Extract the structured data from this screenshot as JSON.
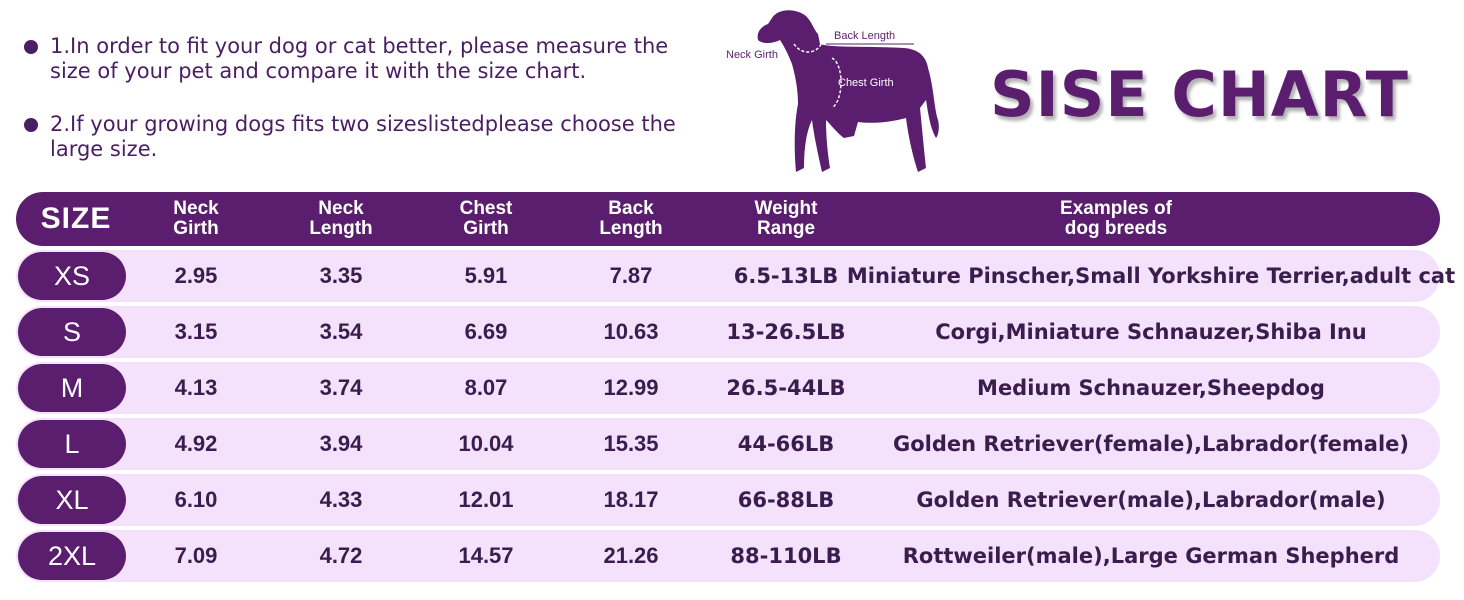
{
  "notes": [
    "1.In order to fit your dog or cat better, please measure the size of your pet and compare it with the size chart.",
    "2.If your growing dogs fits two sizeslistedplease choose the large size."
  ],
  "diagram": {
    "neck_girth": "Neck Girth",
    "back_length": "Back Length",
    "chest_girth": "Chest Girth"
  },
  "title": "SISE CHART",
  "header": {
    "size": "SIZE",
    "neck_girth": "Neck\nGirth",
    "neck_length": "Neck\nLength",
    "chest_girth": "Chest\nGirth",
    "back_length": "Back\nLength",
    "weight": "Weight\nRange",
    "examples": "Examples of\ndog breeds"
  },
  "rows": [
    {
      "size": "XS",
      "neck_girth": "2.95",
      "neck_length": "3.35",
      "chest_girth": "5.91",
      "back_length": "7.87",
      "weight": "6.5-13LB",
      "examples": "Miniature Pinscher,Small Yorkshire Terrier,adult cat"
    },
    {
      "size": "S",
      "neck_girth": "3.15",
      "neck_length": "3.54",
      "chest_girth": "6.69",
      "back_length": "10.63",
      "weight": "13-26.5LB",
      "examples": "Corgi,Miniature Schnauzer,Shiba Inu"
    },
    {
      "size": "M",
      "neck_girth": "4.13",
      "neck_length": "3.74",
      "chest_girth": "8.07",
      "back_length": "12.99",
      "weight": "26.5-44LB",
      "examples": "Medium Schnauzer,Sheepdog"
    },
    {
      "size": "L",
      "neck_girth": "4.92",
      "neck_length": "3.94",
      "chest_girth": "10.04",
      "back_length": "15.35",
      "weight": "44-66LB",
      "examples": "Golden Retriever(female),Labrador(female)"
    },
    {
      "size": "XL",
      "neck_girth": "6.10",
      "neck_length": "4.33",
      "chest_girth": "12.01",
      "back_length": "18.17",
      "weight": "66-88LB",
      "examples": "Golden Retriever(male),Labrador(male)"
    },
    {
      "size": "2XL",
      "neck_girth": "7.09",
      "neck_length": "4.72",
      "chest_girth": "14.57",
      "back_length": "21.26",
      "weight": "88-110LB",
      "examples": "Rottweiler(male),Large German Shepherd"
    }
  ],
  "colors": {
    "primary": "#5b1e6f",
    "row_background": "#f4e1fb",
    "text": "#3a1d4d"
  }
}
